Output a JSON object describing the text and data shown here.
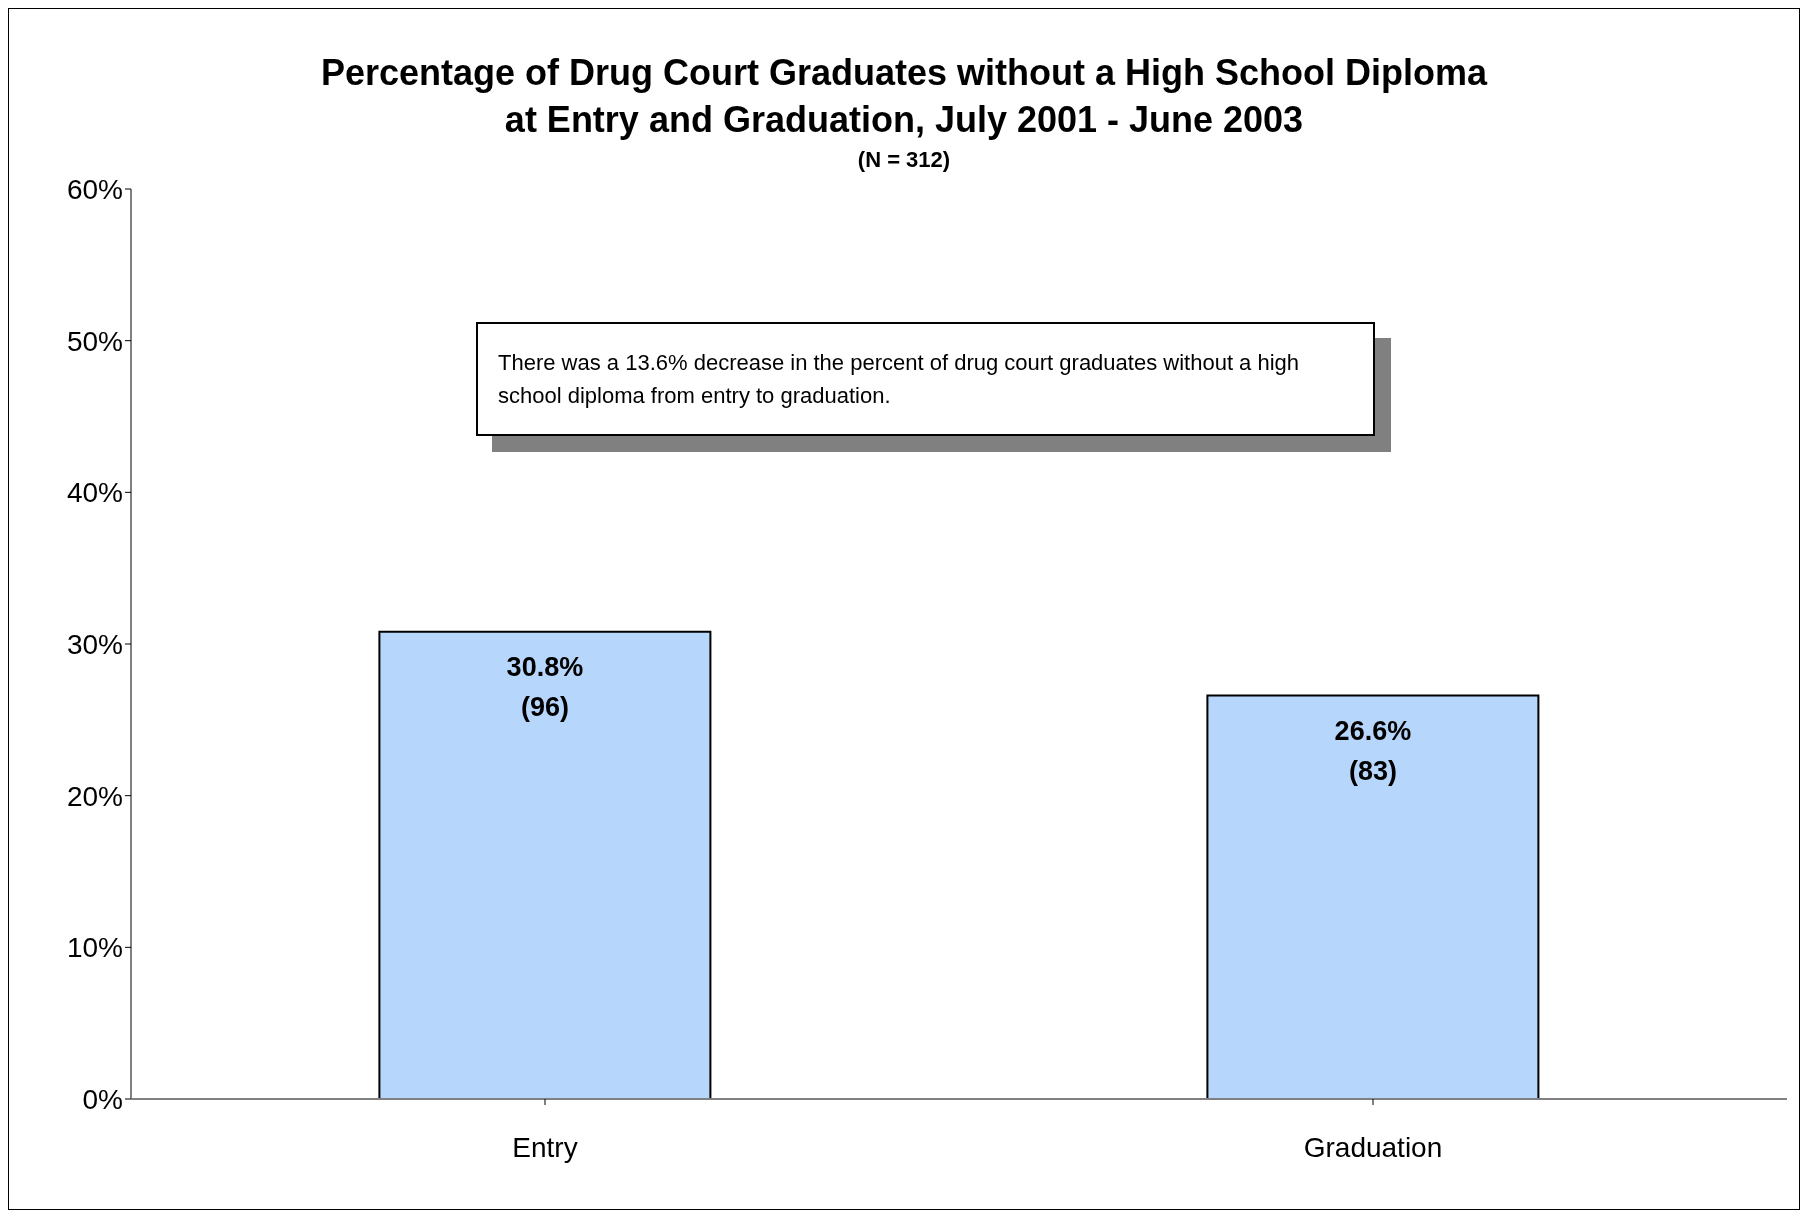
{
  "chart_data": {
    "type": "bar",
    "title": "Percentage of Drug Court Graduates without a High School Diploma\nat Entry and Graduation, July 2001 - June 2003",
    "subtitle": "(N = 312)",
    "categories": [
      "Entry",
      "Graduation"
    ],
    "values": [
      30.8,
      26.6
    ],
    "value_labels": [
      "30.8%\n(96)",
      "26.6%\n(83)"
    ],
    "color": "#b7d6fb",
    "ylim": [
      0,
      60
    ],
    "yticks": [
      {
        "value": 0,
        "label": "0%"
      },
      {
        "value": 10,
        "label": "10%"
      },
      {
        "value": 20,
        "label": "20%"
      },
      {
        "value": 30,
        "label": "30%"
      },
      {
        "value": 40,
        "label": "40%"
      },
      {
        "value": 50,
        "label": "50%"
      },
      {
        "value": 60,
        "label": "60%"
      }
    ],
    "annotations": [
      "There was a 13.6% decrease in the percent of drug court graduates without a high school diploma from entry to graduation."
    ]
  }
}
